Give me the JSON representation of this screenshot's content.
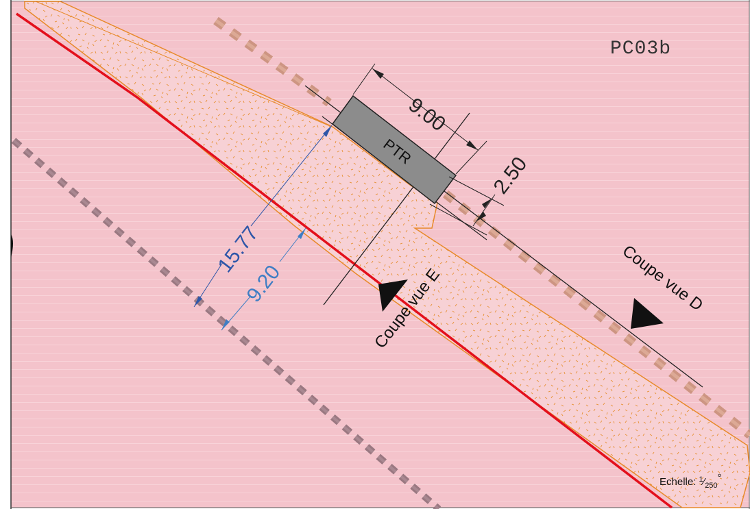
{
  "sheet": {
    "code": "PC03b"
  },
  "building": {
    "label": "PTR",
    "length_label": "9.00",
    "width_label": "2.50"
  },
  "dimensions": {
    "setback_outer": "15.77",
    "setback_inner": "9.20"
  },
  "sections": {
    "view_e": "Coupe vue E",
    "view_d": "Coupe vue D"
  },
  "scale": {
    "prefix": "Echelle: ",
    "numerator": "1",
    "denominator": "250",
    "suffix": "°"
  },
  "colors": {
    "background": "#f4c3cb",
    "property_line": "#e3101c",
    "road_band_fill": "#f7d1d5",
    "road_band_edge": "#e88a2a",
    "building_fill": "#8c8c8c",
    "dimension_blue_dark": "#2e56a8",
    "dimension_blue_light": "#3f7ec4",
    "dotted_path_left": "#8a6b74",
    "dotted_path_right": "#c9907a"
  }
}
